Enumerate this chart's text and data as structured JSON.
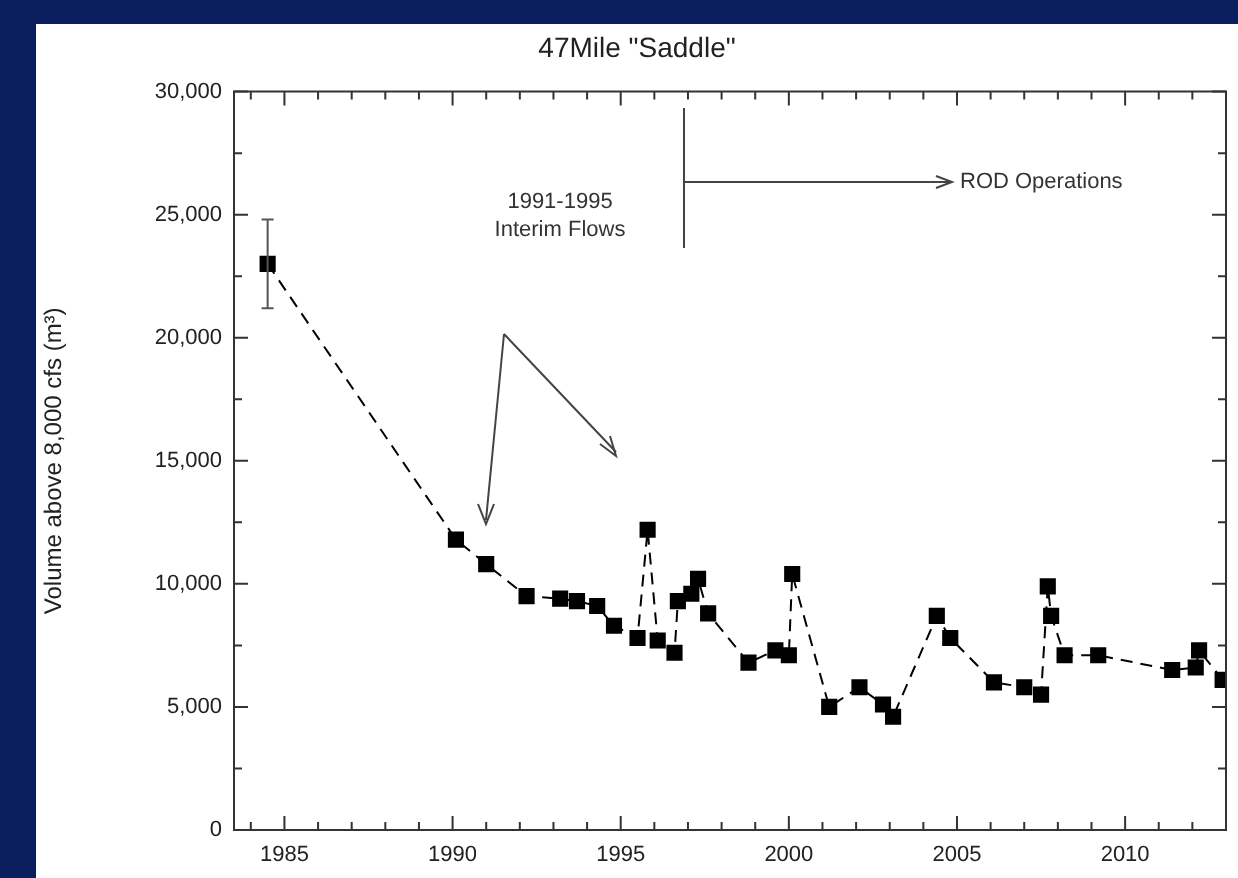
{
  "chart_data": {
    "type": "line",
    "title": "47Mile \"Saddle\"",
    "ylabel": "Volume above 8,000 cfs (m³)",
    "x": [
      1984.5,
      1990.1,
      1991.0,
      1992.2,
      1993.2,
      1993.7,
      1994.3,
      1994.8,
      1995.5,
      1995.8,
      1996.1,
      1996.6,
      1996.7,
      1997.1,
      1997.3,
      1997.6,
      1998.8,
      1999.6,
      2000.0,
      2000.1,
      2001.2,
      2002.1,
      2002.8,
      2003.1,
      2004.4,
      2004.8,
      2006.1,
      2007.0,
      2007.5,
      2007.7,
      2007.8,
      2008.2,
      2009.2,
      2011.4,
      2012.1,
      2012.2,
      2012.9
    ],
    "series": [
      {
        "color": "#000000",
        "values": [
          23000,
          11800,
          10800,
          9500,
          9400,
          9300,
          9100,
          8300,
          7800,
          12200,
          7700,
          7200,
          9300,
          9600,
          10200,
          8800,
          6800,
          7300,
          7100,
          10400,
          5000,
          5800,
          5100,
          4600,
          8700,
          7800,
          6000,
          5800,
          5500,
          9900,
          8700,
          7100,
          7100,
          6500,
          6600,
          7300,
          6100
        ],
        "errors": [
          1800,
          null,
          null,
          null,
          null,
          null,
          null,
          null,
          null,
          null,
          null,
          null,
          null,
          null,
          null,
          null,
          null,
          null,
          null,
          null,
          null,
          null,
          null,
          null,
          null,
          null,
          null,
          null,
          null,
          null,
          null,
          null,
          null,
          null,
          null,
          null,
          null
        ]
      }
    ],
    "marker": "square",
    "line_style": "dashed",
    "grid": false,
    "legend": false,
    "xlim": [
      1983.5,
      2013
    ],
    "xticks": [
      {
        "value": 1984,
        "label": null
      },
      1985,
      {
        "value": 1986,
        "label": null
      },
      {
        "value": 1987,
        "label": null
      },
      {
        "value": 1988,
        "label": null
      },
      {
        "value": 1989,
        "label": null
      },
      1990,
      {
        "value": 1991,
        "label": null
      },
      {
        "value": 1992,
        "label": null
      },
      {
        "value": 1993,
        "label": null
      },
      {
        "value": 1994,
        "label": null
      },
      1995,
      {
        "value": 1996,
        "label": null
      },
      {
        "value": 1997,
        "label": null
      },
      {
        "value": 1998,
        "label": null
      },
      {
        "value": 1999,
        "label": null
      },
      2000,
      {
        "value": 2001,
        "label": null
      },
      {
        "value": 2002,
        "label": null
      },
      {
        "value": 2003,
        "label": null
      },
      {
        "value": 2004,
        "label": null
      },
      2005,
      {
        "value": 2006,
        "label": null
      },
      {
        "value": 2007,
        "label": null
      },
      {
        "value": 2008,
        "label": null
      },
      {
        "value": 2009,
        "label": null
      },
      2010,
      {
        "value": 2011,
        "label": null
      },
      {
        "value": 2012,
        "label": null
      }
    ],
    "ylim": [
      0,
      30000
    ],
    "yticks": [
      0,
      {
        "value": 2500,
        "label": null
      },
      {
        "value": 5000,
        "label": "5,000"
      },
      {
        "value": 7500,
        "label": null
      },
      {
        "value": 10000,
        "label": "10,000"
      },
      {
        "value": 12500,
        "label": null
      },
      {
        "value": 15000,
        "label": "15,000"
      },
      {
        "value": 17500,
        "label": null
      },
      {
        "value": 20000,
        "label": "20,000"
      },
      {
        "value": 22500,
        "label": null
      },
      {
        "value": 25000,
        "label": "25,000"
      },
      {
        "value": 27500,
        "label": null
      },
      {
        "value": 30000,
        "label": "30,000"
      }
    ],
    "annotations": [
      "1991-1995\nInterim Flows",
      "ROD Operations"
    ]
  }
}
